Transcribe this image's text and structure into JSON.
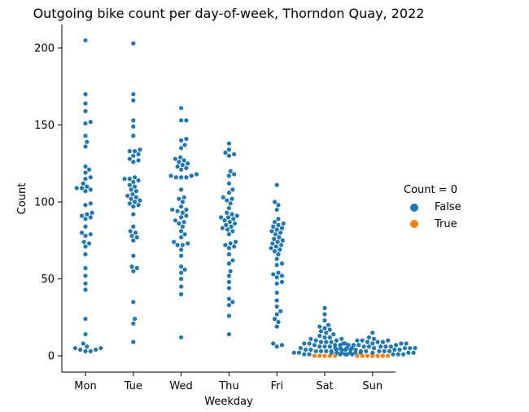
{
  "chart_data": {
    "type": "scatter",
    "subtype": "swarm",
    "title": "Outgoing bike count per day-of-week, Thorndon Quay, 2022",
    "xlabel": "Weekday",
    "ylabel": "Count",
    "categories": [
      "Mon",
      "Tue",
      "Wed",
      "Thu",
      "Fri",
      "Sat",
      "Sun"
    ],
    "yticks": [
      0,
      50,
      100,
      150,
      200
    ],
    "ylim": [
      -10,
      215
    ],
    "grid": false,
    "legend": {
      "title": "Count = 0",
      "placement": "right",
      "entries": [
        {
          "label": "False",
          "color": "#1f77b4"
        },
        {
          "label": "True",
          "color": "#ff7f0e"
        }
      ]
    },
    "series": [
      {
        "name": "False",
        "color": "#1f77b4",
        "values_by_category": {
          "Mon": [
            205,
            170,
            164,
            159,
            152,
            151,
            143,
            139,
            136,
            123,
            121,
            119,
            116,
            115,
            112,
            110,
            109,
            109,
            108,
            107,
            99,
            98,
            93,
            92,
            91,
            90,
            89,
            84,
            80,
            79,
            78,
            74,
            73,
            71,
            66,
            57,
            52,
            47,
            43,
            24,
            14,
            8,
            6,
            5,
            5,
            4,
            4,
            3,
            3
          ],
          "Tue": [
            203,
            170,
            166,
            153,
            149,
            143,
            134,
            133,
            133,
            131,
            130,
            128,
            127,
            126,
            116,
            115,
            115,
            114,
            113,
            111,
            110,
            108,
            107,
            105,
            104,
            103,
            102,
            101,
            100,
            99,
            98,
            97,
            92,
            84,
            81,
            80,
            78,
            77,
            75,
            65,
            58,
            57,
            55,
            35,
            24,
            21,
            9
          ],
          "Wed": [
            161,
            153,
            153,
            141,
            140,
            137,
            135,
            129,
            128,
            127,
            126,
            125,
            124,
            123,
            122,
            121,
            118,
            117,
            117,
            116,
            116,
            116,
            108,
            103,
            102,
            100,
            97,
            95,
            95,
            94,
            93,
            91,
            90,
            88,
            87,
            86,
            84,
            81,
            79,
            77,
            74,
            73,
            72,
            72,
            69,
            65,
            58,
            56,
            54,
            50,
            45,
            40,
            12
          ],
          "Thu": [
            138,
            134,
            132,
            131,
            130,
            120,
            118,
            117,
            112,
            108,
            106,
            103,
            102,
            101,
            99,
            96,
            93,
            92,
            91,
            90,
            90,
            89,
            88,
            87,
            86,
            85,
            84,
            83,
            82,
            81,
            79,
            74,
            73,
            72,
            71,
            70,
            66,
            62,
            60,
            55,
            52,
            48,
            44,
            37,
            35,
            33,
            26,
            14
          ],
          "Fri": [
            111,
            100,
            98,
            95,
            89,
            87,
            86,
            85,
            84,
            83,
            82,
            81,
            80,
            79,
            77,
            76,
            75,
            74,
            73,
            72,
            71,
            70,
            69,
            68,
            66,
            63,
            60,
            59,
            54,
            53,
            52,
            51,
            48,
            47,
            41,
            36,
            32,
            29,
            27,
            24,
            22,
            19,
            8,
            7,
            6
          ],
          "Sat": [
            31,
            27,
            23,
            20,
            19,
            18,
            17,
            16,
            15,
            14,
            13,
            12,
            12,
            11,
            11,
            10,
            10,
            9,
            9,
            9,
            8,
            8,
            8,
            7,
            7,
            7,
            6,
            6,
            6,
            5,
            5,
            5,
            4,
            4,
            4,
            4,
            3,
            3,
            3,
            3,
            2,
            2,
            2,
            2,
            2,
            1,
            1,
            1,
            1
          ],
          "Sun": [
            15,
            12,
            11,
            10,
            10,
            10,
            9,
            9,
            9,
            8,
            8,
            8,
            8,
            7,
            7,
            7,
            7,
            6,
            6,
            6,
            6,
            6,
            5,
            5,
            5,
            5,
            5,
            5,
            4,
            4,
            4,
            4,
            4,
            3,
            3,
            3,
            3,
            3,
            2,
            2,
            2,
            2,
            2,
            2,
            1,
            1,
            1,
            1,
            1
          ]
        }
      },
      {
        "name": "True",
        "color": "#ff7f0e",
        "values_by_category": {
          "Mon": [],
          "Tue": [],
          "Wed": [],
          "Thu": [],
          "Fri": [],
          "Sat": [
            0,
            0,
            0,
            0,
            0
          ],
          "Sun": [
            0,
            0,
            0,
            0,
            0,
            0,
            0
          ]
        }
      }
    ]
  }
}
